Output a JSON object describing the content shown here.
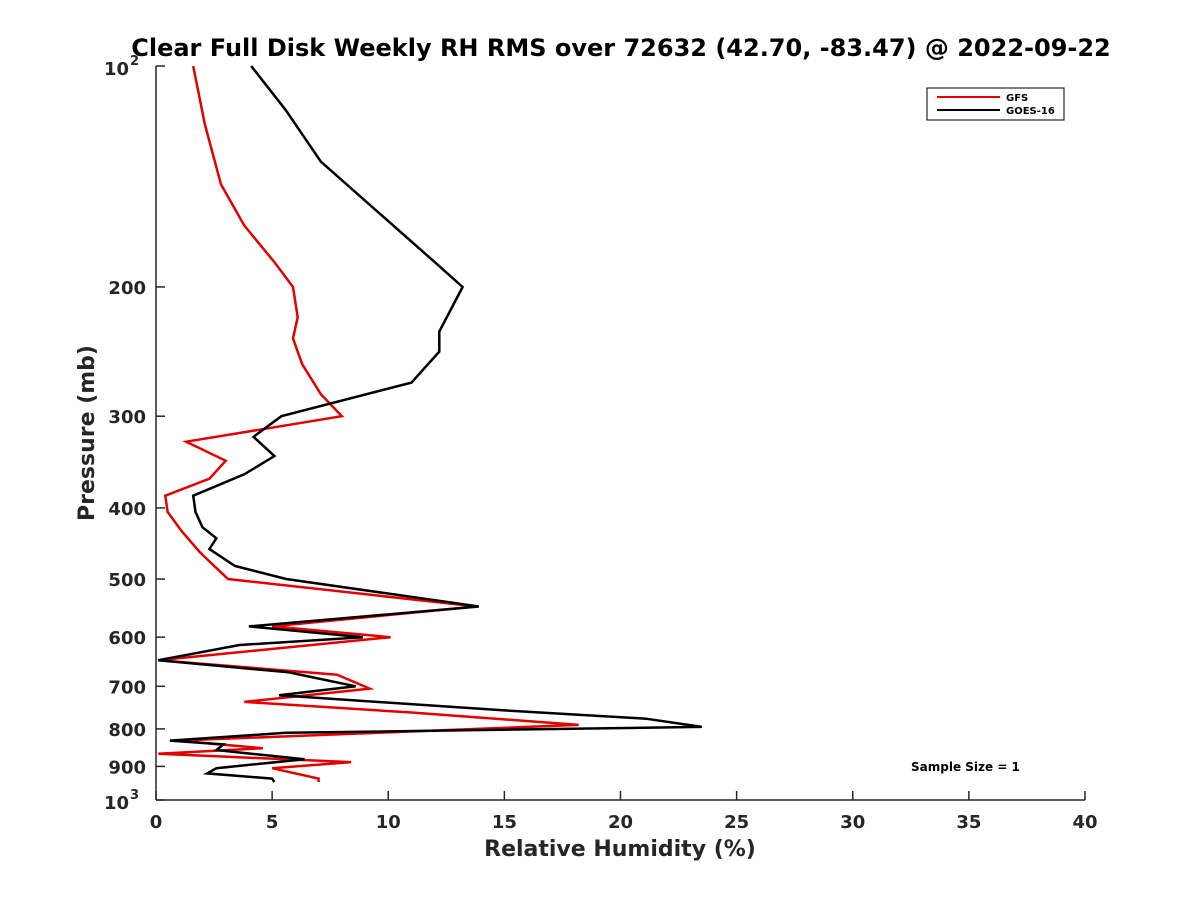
{
  "chart_data": {
    "type": "line",
    "title": "Clear Full Disk Weekly RH RMS over 72632 (42.70, -83.47) @ 2022-09-22",
    "xlabel": "Relative Humidity (%)",
    "ylabel": "Pressure (mb)",
    "xlim": [
      0,
      40
    ],
    "ylim": [
      100,
      1000
    ],
    "y_scale": "log",
    "y_reversed": true,
    "x_ticks": [
      "0",
      "5",
      "10",
      "15",
      "20",
      "25",
      "30",
      "35",
      "40"
    ],
    "y_ticks": [
      {
        "value": 100,
        "base": "10",
        "exp": "2"
      },
      {
        "value": 200,
        "label": "200"
      },
      {
        "value": 300,
        "label": "300"
      },
      {
        "value": 400,
        "label": "400"
      },
      {
        "value": 500,
        "label": "500"
      },
      {
        "value": 600,
        "label": "600"
      },
      {
        "value": 700,
        "label": "700"
      },
      {
        "value": 800,
        "label": "800"
      },
      {
        "value": 900,
        "label": "900"
      },
      {
        "value": 1000,
        "base": "10",
        "exp": "3"
      }
    ],
    "grid": false,
    "legend_position": "top-right",
    "annotation": "Sample Size = 1",
    "series": [
      {
        "name": "GFS",
        "color": "#e50000",
        "points": [
          [
            1.6,
            100
          ],
          [
            2.1,
            120
          ],
          [
            2.8,
            145
          ],
          [
            3.8,
            165
          ],
          [
            5.1,
            185
          ],
          [
            5.9,
            200
          ],
          [
            6.1,
            220
          ],
          [
            5.9,
            235
          ],
          [
            6.3,
            255
          ],
          [
            7.1,
            280
          ],
          [
            8.0,
            300
          ],
          [
            1.3,
            325
          ],
          [
            3.0,
            345
          ],
          [
            2.3,
            365
          ],
          [
            0.4,
            385
          ],
          [
            0.5,
            405
          ],
          [
            1.1,
            430
          ],
          [
            1.9,
            460
          ],
          [
            3.1,
            500
          ],
          [
            13.8,
            545
          ],
          [
            5.0,
            580
          ],
          [
            10.1,
            600
          ],
          [
            0.1,
            645
          ],
          [
            7.8,
            675
          ],
          [
            9.2,
            705
          ],
          [
            3.8,
            735
          ],
          [
            11.0,
            760
          ],
          [
            18.2,
            790
          ],
          [
            0.9,
            830
          ],
          [
            4.6,
            850
          ],
          [
            0.1,
            865
          ],
          [
            2.6,
            872
          ],
          [
            8.4,
            888
          ],
          [
            5.0,
            905
          ],
          [
            7.0,
            935
          ],
          [
            7.0,
            945
          ]
        ]
      },
      {
        "name": "GOES-16",
        "color": "#000000",
        "points": [
          [
            4.1,
            100
          ],
          [
            5.6,
            115
          ],
          [
            7.1,
            135
          ],
          [
            12.0,
            185
          ],
          [
            13.2,
            200
          ],
          [
            12.2,
            230
          ],
          [
            12.2,
            245
          ],
          [
            11.0,
            270
          ],
          [
            5.4,
            300
          ],
          [
            4.2,
            320
          ],
          [
            5.1,
            340
          ],
          [
            3.8,
            360
          ],
          [
            1.6,
            385
          ],
          [
            1.7,
            405
          ],
          [
            2.0,
            425
          ],
          [
            2.6,
            440
          ],
          [
            2.3,
            455
          ],
          [
            3.4,
            480
          ],
          [
            5.6,
            500
          ],
          [
            13.9,
            545
          ],
          [
            4.0,
            580
          ],
          [
            8.9,
            600
          ],
          [
            3.6,
            615
          ],
          [
            0.1,
            645
          ],
          [
            5.7,
            670
          ],
          [
            8.6,
            700
          ],
          [
            5.3,
            720
          ],
          [
            15.0,
            755
          ],
          [
            21.1,
            775
          ],
          [
            23.5,
            795
          ],
          [
            5.6,
            810
          ],
          [
            0.6,
            830
          ],
          [
            2.9,
            840
          ],
          [
            2.6,
            855
          ],
          [
            6.4,
            880
          ],
          [
            2.6,
            905
          ],
          [
            2.2,
            920
          ],
          [
            5.0,
            935
          ],
          [
            5.1,
            945
          ]
        ]
      }
    ]
  }
}
